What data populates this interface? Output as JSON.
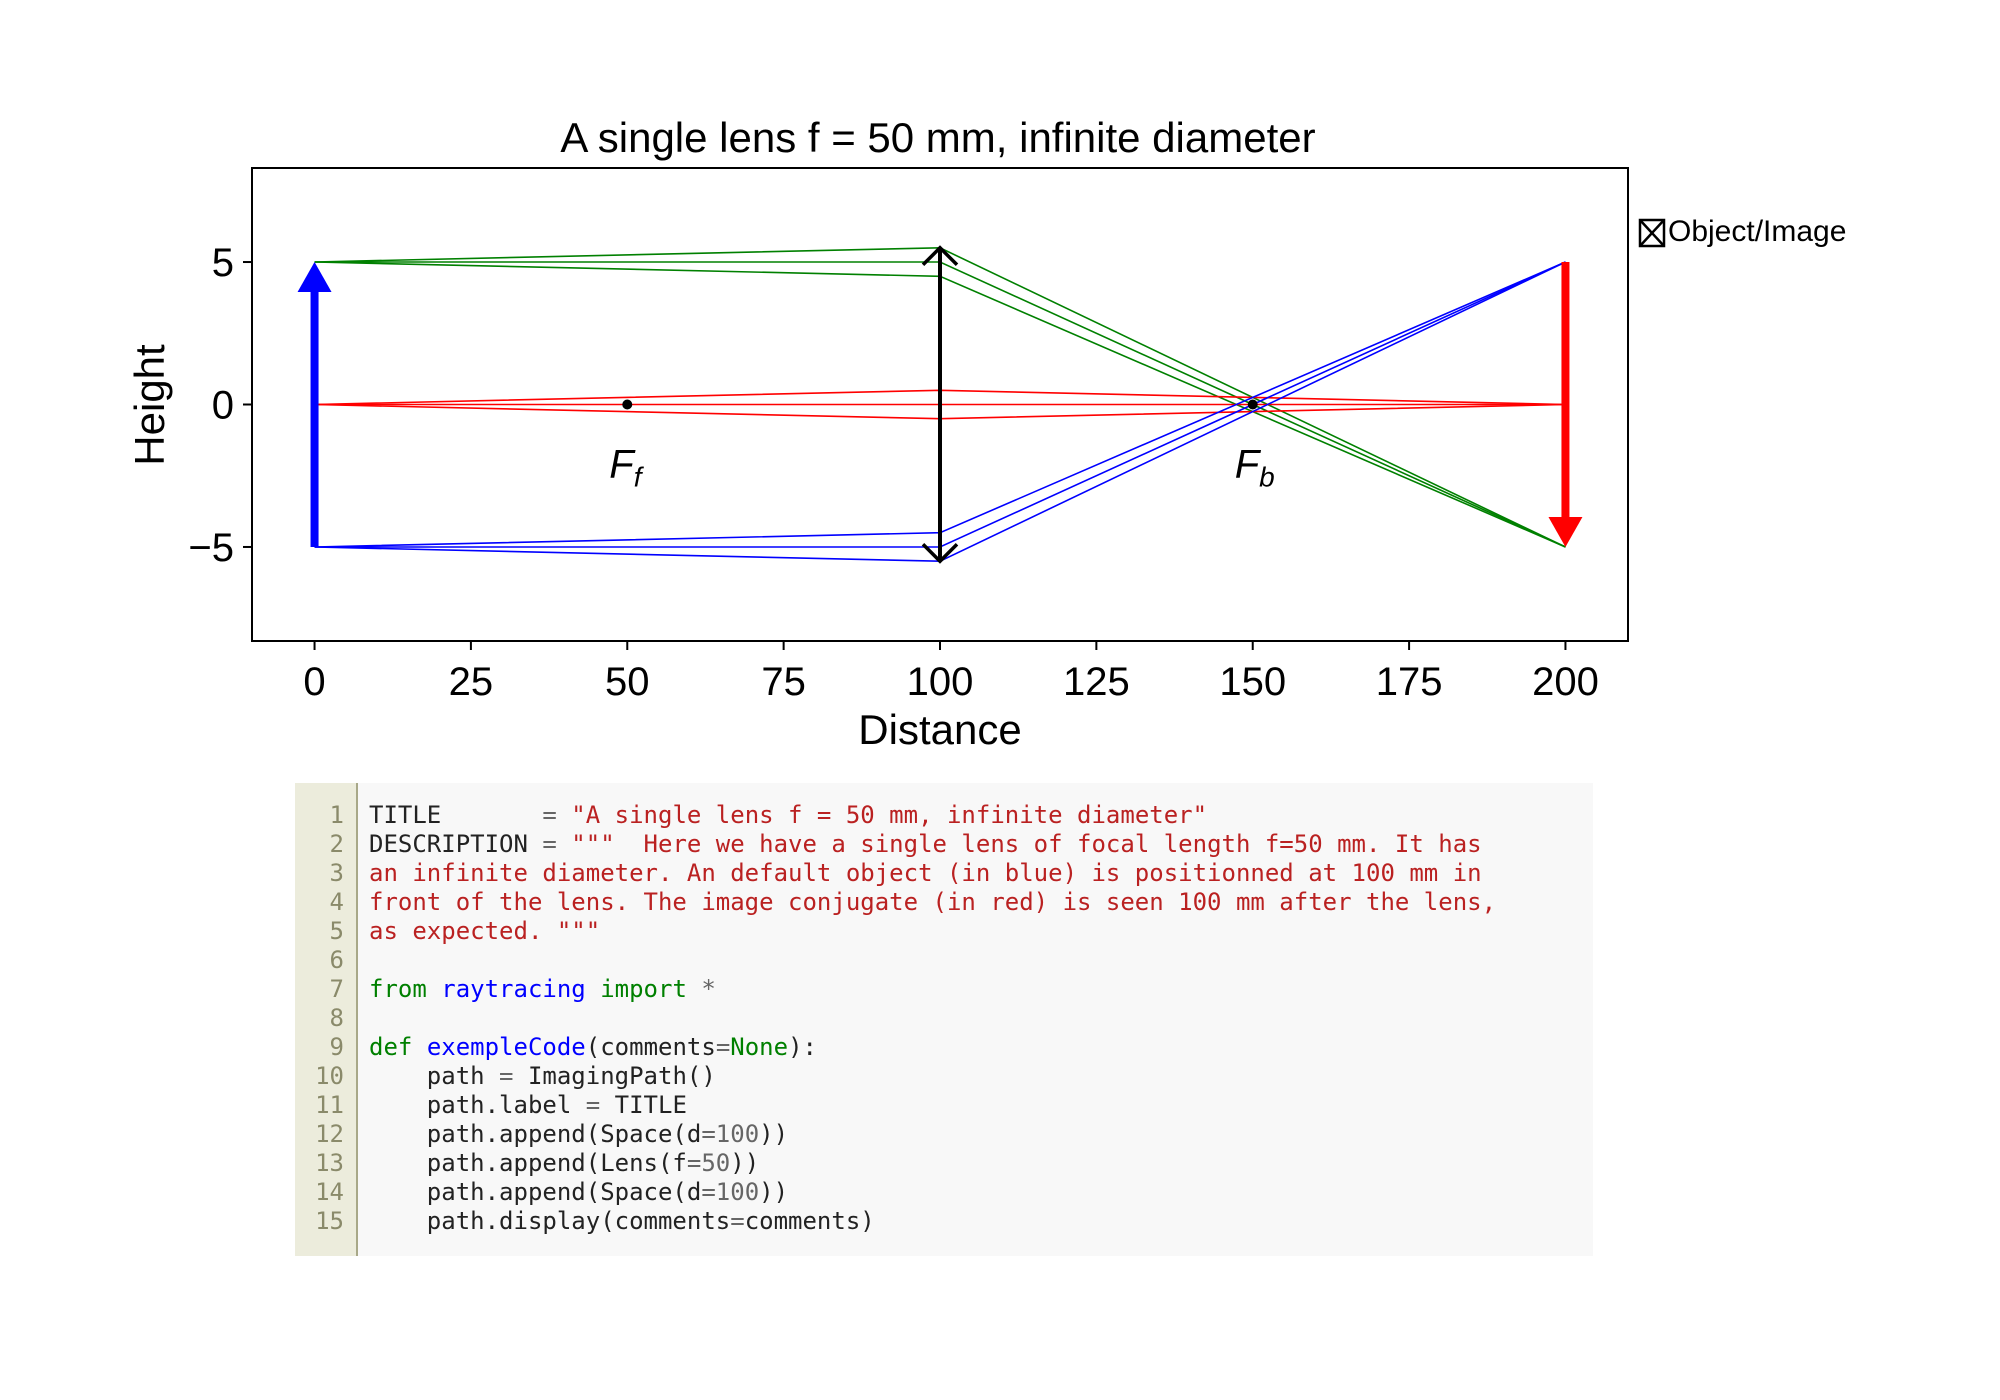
{
  "chart_data": {
    "type": "line",
    "title": "A single lens f = 50 mm, infinite diameter",
    "xlabel": "Distance",
    "ylabel": "Height",
    "xlim": [
      -10,
      210
    ],
    "ylim": [
      -8.3,
      8.3
    ],
    "xticks": [
      0,
      25,
      50,
      75,
      100,
      125,
      150,
      175,
      200
    ],
    "xtick_labels": [
      "0",
      "25",
      "50",
      "75",
      "100",
      "125",
      "150",
      "175",
      "200"
    ],
    "yticks": [
      5,
      0,
      -5
    ],
    "ytick_labels": [
      "5",
      "0",
      "−5"
    ],
    "legend": {
      "label": "Object/Image",
      "placement": "outside-right"
    },
    "object": {
      "x": 0,
      "y_from": -5,
      "y_to": 5,
      "color": "#0000ff"
    },
    "image": {
      "x": 200,
      "y_from": 5,
      "y_to": -5,
      "color": "#ff0000"
    },
    "lens": {
      "x": 100,
      "y_from": -5.5,
      "y_to": 5.5,
      "color": "#000000"
    },
    "focal_points": [
      {
        "x": 50,
        "y": 0,
        "label": "F",
        "subscript": "f"
      },
      {
        "x": 150,
        "y": 0,
        "label": "F",
        "subscript": "b"
      }
    ],
    "rays": [
      {
        "name": "top",
        "color": "#008000",
        "paths": [
          [
            [
              0,
              5
            ],
            [
              100,
              5.5
            ],
            [
              200,
              -5
            ]
          ],
          [
            [
              0,
              5
            ],
            [
              100,
              5
            ],
            [
              200,
              -5
            ]
          ],
          [
            [
              0,
              5
            ],
            [
              100,
              4.5
            ],
            [
              200,
              -5
            ]
          ]
        ]
      },
      {
        "name": "axis",
        "color": "#ff0000",
        "paths": [
          [
            [
              0,
              0
            ],
            [
              100,
              0.5
            ],
            [
              200,
              0
            ]
          ],
          [
            [
              0,
              0
            ],
            [
              100,
              0
            ],
            [
              200,
              0
            ]
          ],
          [
            [
              0,
              0
            ],
            [
              100,
              -0.5
            ],
            [
              200,
              0
            ]
          ]
        ]
      },
      {
        "name": "bottom",
        "color": "#0000ff",
        "paths": [
          [
            [
              0,
              -5
            ],
            [
              100,
              -4.5
            ],
            [
              200,
              5
            ]
          ],
          [
            [
              0,
              -5
            ],
            [
              100,
              -5
            ],
            [
              200,
              5
            ]
          ],
          [
            [
              0,
              -5
            ],
            [
              100,
              -5.5
            ],
            [
              200,
              5
            ]
          ]
        ]
      }
    ]
  },
  "code": {
    "line_numbers": [
      "1",
      "2",
      "3",
      "4",
      "5",
      "6",
      "7",
      "8",
      "9",
      "10",
      "11",
      "12",
      "13",
      "14",
      "15"
    ],
    "lines": [
      [
        [
          "plain",
          "TITLE       "
        ],
        [
          "op",
          "="
        ],
        [
          "plain",
          " "
        ],
        [
          "str",
          "\"A single lens f = 50 mm, infinite diameter\""
        ]
      ],
      [
        [
          "plain",
          "DESCRIPTION "
        ],
        [
          "op",
          "="
        ],
        [
          "plain",
          " "
        ],
        [
          "str",
          "\"\"\"  Here we have a single lens of focal length f=50 mm. It has"
        ]
      ],
      [
        [
          "str",
          "an infinite diameter. An default object (in blue) is positionned at 100 mm in"
        ]
      ],
      [
        [
          "str",
          "front of the lens. The image conjugate (in red) is seen 100 mm after the lens,"
        ]
      ],
      [
        [
          "str",
          "as expected. \"\"\""
        ]
      ],
      [],
      [
        [
          "kw",
          "from"
        ],
        [
          "plain",
          " "
        ],
        [
          "mod",
          "raytracing"
        ],
        [
          "plain",
          " "
        ],
        [
          "kw",
          "import"
        ],
        [
          "plain",
          " "
        ],
        [
          "op",
          "*"
        ]
      ],
      [],
      [
        [
          "kw",
          "def"
        ],
        [
          "plain",
          " "
        ],
        [
          "fn",
          "exempleCode"
        ],
        [
          "plain",
          "(comments"
        ],
        [
          "op",
          "="
        ],
        [
          "kw",
          "None"
        ],
        [
          "plain",
          "):"
        ]
      ],
      [
        [
          "plain",
          "    path "
        ],
        [
          "op",
          "="
        ],
        [
          "plain",
          " ImagingPath()"
        ]
      ],
      [
        [
          "plain",
          "    path.label "
        ],
        [
          "op",
          "="
        ],
        [
          "plain",
          " TITLE"
        ]
      ],
      [
        [
          "plain",
          "    path.append(Space(d"
        ],
        [
          "op",
          "="
        ],
        [
          "num",
          "100"
        ],
        [
          "plain",
          "))"
        ]
      ],
      [
        [
          "plain",
          "    path.append(Lens(f"
        ],
        [
          "op",
          "="
        ],
        [
          "num",
          "50"
        ],
        [
          "plain",
          "))"
        ]
      ],
      [
        [
          "plain",
          "    path.append(Space(d"
        ],
        [
          "op",
          "="
        ],
        [
          "num",
          "100"
        ],
        [
          "plain",
          "))"
        ]
      ],
      [
        [
          "plain",
          "    path.display(comments"
        ],
        [
          "op",
          "="
        ],
        [
          "plain",
          "comments)"
        ]
      ]
    ]
  }
}
